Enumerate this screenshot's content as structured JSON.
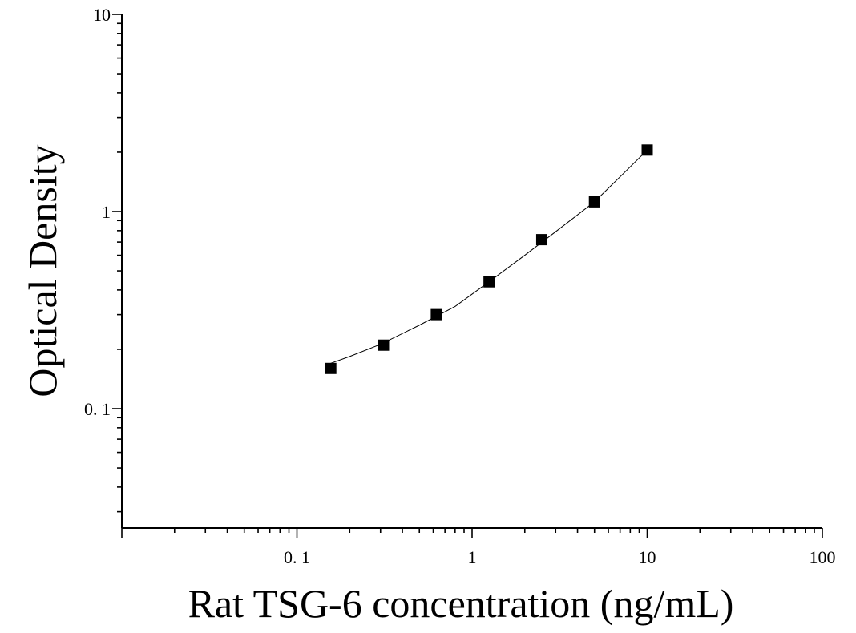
{
  "chart_data": {
    "type": "scatter",
    "title": "",
    "xlabel": "Rat TSG-6 concentration (ng/mL)",
    "ylabel": "Optical Density",
    "xscale": "log",
    "yscale": "log",
    "xlim": [
      0.01,
      100
    ],
    "ylim": [
      0.025,
      10
    ],
    "x_ticks": [
      {
        "value": 0.1,
        "label": "0. 1"
      },
      {
        "value": 1,
        "label": "1"
      },
      {
        "value": 10,
        "label": "10"
      },
      {
        "value": 100,
        "label": "100"
      }
    ],
    "y_ticks": [
      {
        "value": 0.1,
        "label": "0. 1"
      },
      {
        "value": 1,
        "label": "1"
      },
      {
        "value": 10,
        "label": "10"
      }
    ],
    "grid": false,
    "legend": "none",
    "series": [
      {
        "marker": "square",
        "color": "#000000",
        "x": [
          0.156,
          0.312,
          0.625,
          1.25,
          2.5,
          5,
          10
        ],
        "y": [
          0.16,
          0.21,
          0.3,
          0.44,
          0.72,
          1.12,
          2.05
        ]
      }
    ],
    "fit_curve": {
      "color": "#000000",
      "x": [
        0.156,
        0.2,
        0.3,
        0.5,
        0.8,
        1.25,
        2,
        3,
        5,
        7,
        10
      ],
      "y": [
        0.17,
        0.184,
        0.212,
        0.265,
        0.33,
        0.44,
        0.6,
        0.79,
        1.12,
        1.5,
        2.05
      ]
    }
  }
}
